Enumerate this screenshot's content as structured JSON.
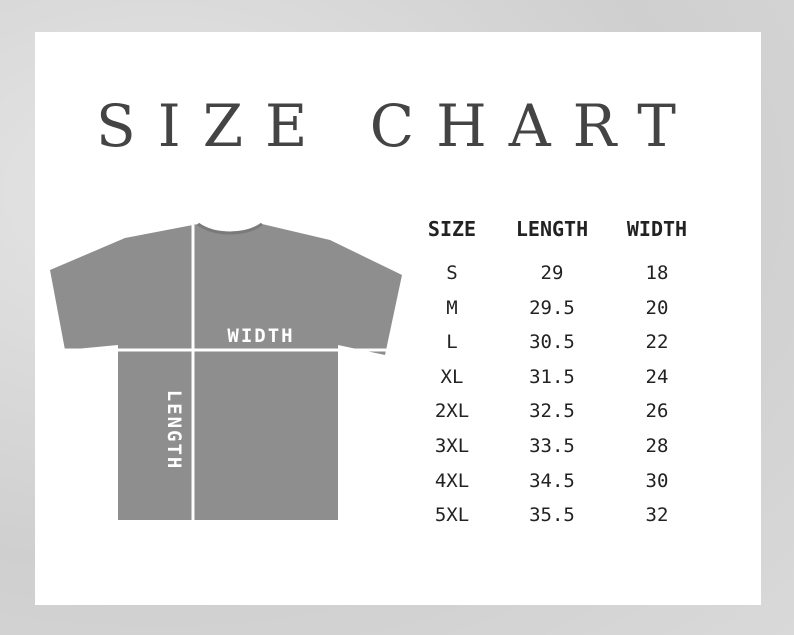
{
  "title": "SIZE CHART",
  "diagram": {
    "width_label": "WIDTH",
    "length_label": "LENGTH",
    "shirt_color": "#8e8e8e"
  },
  "table": {
    "headers": [
      "SIZE",
      "LENGTH",
      "WIDTH"
    ],
    "rows": [
      [
        "S",
        "29",
        "18"
      ],
      [
        "M",
        "29.5",
        "20"
      ],
      [
        "L",
        "30.5",
        "22"
      ],
      [
        "XL",
        "31.5",
        "24"
      ],
      [
        "2XL",
        "32.5",
        "26"
      ],
      [
        "3XL",
        "33.5",
        "28"
      ],
      [
        "4XL",
        "34.5",
        "30"
      ],
      [
        "5XL",
        "35.5",
        "32"
      ]
    ]
  }
}
